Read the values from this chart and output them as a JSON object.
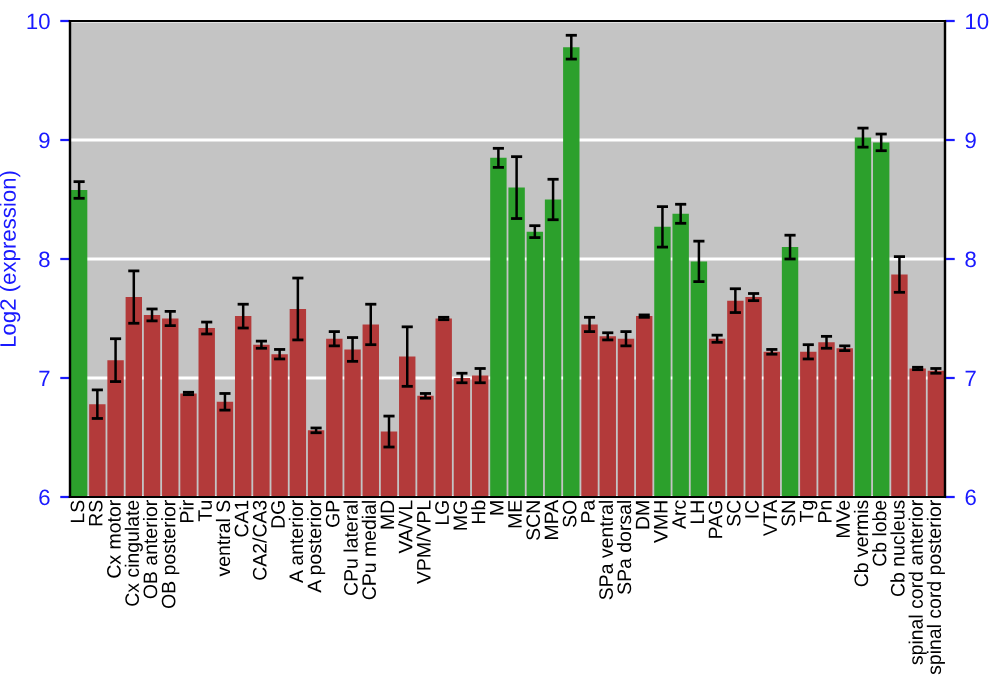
{
  "chart_data": {
    "type": "bar",
    "ylabel": "Log2 (expression)",
    "categories": [
      "LS",
      "RS",
      "Cx motor",
      "Cx cingulate",
      "OB anterior",
      "OB posterior",
      "Pir",
      "Tu",
      "ventral S",
      "CA1",
      "CA2/CA3",
      "DG",
      "A anterior",
      "A posterior",
      "GP",
      "CPu lateral",
      "CPu medial",
      "MD",
      "VA/VL",
      "VPM/VPL",
      "LG",
      "MG",
      "Hb",
      "M",
      "ME",
      "SCN",
      "MPA",
      "SO",
      "Pa",
      "SPa ventral",
      "SPa dorsal",
      "DM",
      "VMH",
      "Arc",
      "LH",
      "PAG",
      "SC",
      "IC",
      "VTA",
      "SN",
      "Tg",
      "Pn",
      "MVe",
      "Cb vermis",
      "Cb lobe",
      "Cb nucleus",
      "spinal cord anterior",
      "spinal cord posterior"
    ],
    "values": [
      8.58,
      6.78,
      7.15,
      7.68,
      7.53,
      7.5,
      6.87,
      7.42,
      6.8,
      7.52,
      7.28,
      7.2,
      7.58,
      6.56,
      7.33,
      7.24,
      7.45,
      6.55,
      7.18,
      6.85,
      7.5,
      7.0,
      7.02,
      8.85,
      8.6,
      8.23,
      8.5,
      9.78,
      7.45,
      7.35,
      7.33,
      7.52,
      8.27,
      8.38,
      7.98,
      7.33,
      7.65,
      7.68,
      7.22,
      8.1,
      7.22,
      7.3,
      7.25,
      9.02,
      8.98,
      7.87,
      7.08,
      7.06
    ],
    "errors": [
      0.07,
      0.12,
      0.18,
      0.22,
      0.05,
      0.06,
      0.01,
      0.05,
      0.07,
      0.1,
      0.03,
      0.04,
      0.26,
      0.02,
      0.06,
      0.1,
      0.17,
      0.13,
      0.25,
      0.02,
      0.01,
      0.04,
      0.06,
      0.08,
      0.26,
      0.05,
      0.17,
      0.1,
      0.06,
      0.03,
      0.06,
      0.01,
      0.17,
      0.08,
      0.17,
      0.03,
      0.1,
      0.03,
      0.02,
      0.1,
      0.06,
      0.05,
      0.02,
      0.08,
      0.07,
      0.15,
      0.01,
      0.02
    ],
    "colors": [
      "#2ca02c",
      "#b33a3a",
      "#b33a3a",
      "#b33a3a",
      "#b33a3a",
      "#b33a3a",
      "#b33a3a",
      "#b33a3a",
      "#b33a3a",
      "#b33a3a",
      "#b33a3a",
      "#b33a3a",
      "#b33a3a",
      "#b33a3a",
      "#b33a3a",
      "#b33a3a",
      "#b33a3a",
      "#b33a3a",
      "#b33a3a",
      "#b33a3a",
      "#b33a3a",
      "#b33a3a",
      "#b33a3a",
      "#2ca02c",
      "#2ca02c",
      "#2ca02c",
      "#2ca02c",
      "#2ca02c",
      "#b33a3a",
      "#b33a3a",
      "#b33a3a",
      "#b33a3a",
      "#2ca02c",
      "#2ca02c",
      "#2ca02c",
      "#b33a3a",
      "#b33a3a",
      "#b33a3a",
      "#b33a3a",
      "#2ca02c",
      "#b33a3a",
      "#b33a3a",
      "#b33a3a",
      "#2ca02c",
      "#2ca02c",
      "#b33a3a",
      "#b33a3a",
      "#b33a3a"
    ],
    "ylim": [
      6,
      10
    ],
    "yticks": [
      6,
      7,
      8,
      9,
      10
    ],
    "y2lim": [
      6,
      10
    ],
    "y2ticks": [
      6,
      7,
      8,
      9,
      10
    ],
    "grid": "y"
  }
}
